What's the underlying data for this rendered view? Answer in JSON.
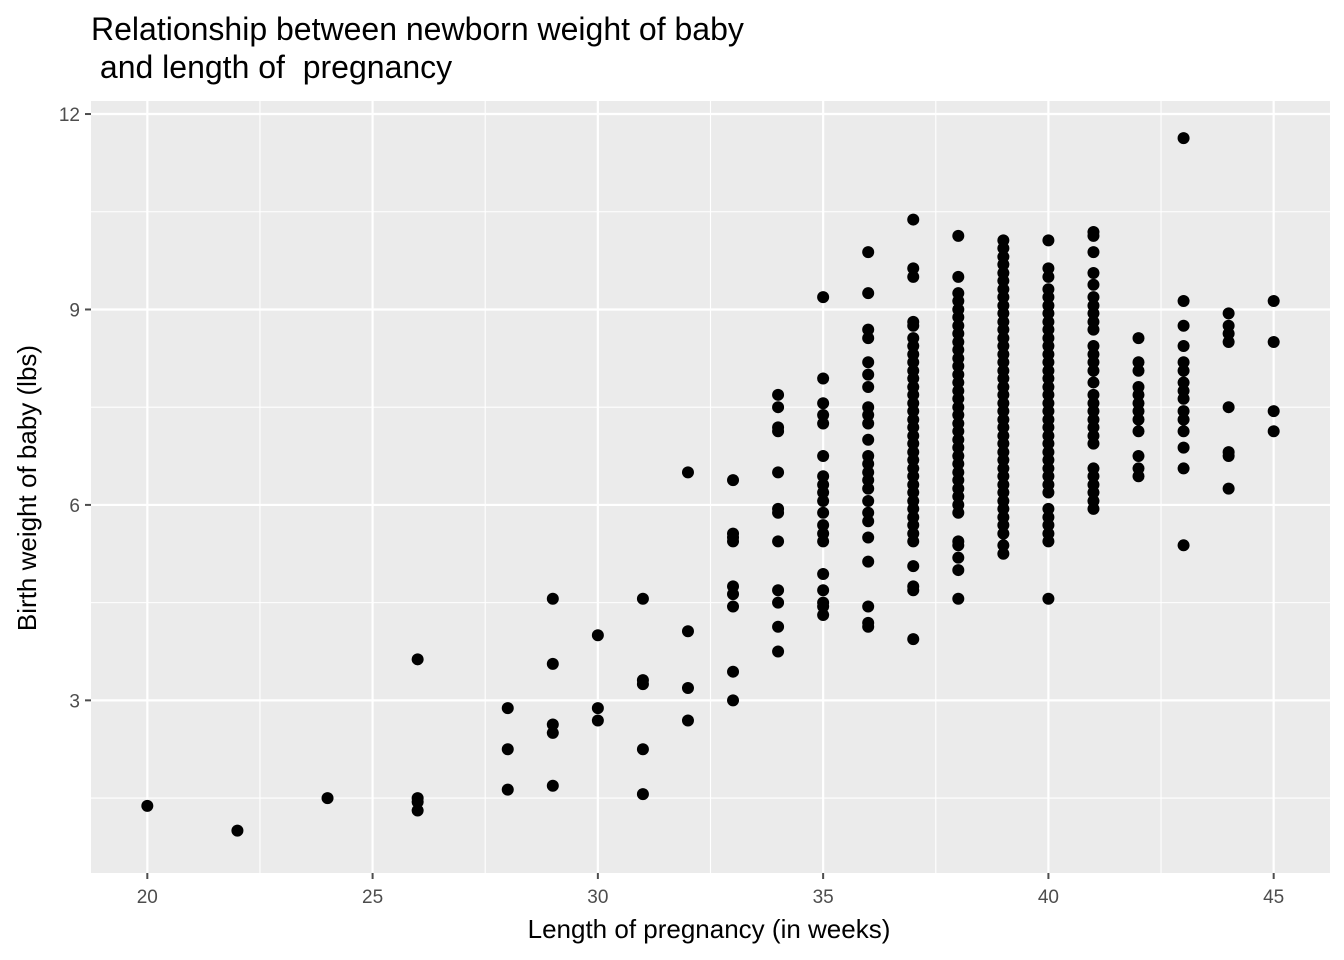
{
  "chart_data": {
    "type": "scatter",
    "title_lines": [
      "Relationship between newborn weight of baby",
      " and length of  pregnancy"
    ],
    "xlabel": "Length of pregnancy (in weeks)",
    "ylabel": "Birth weight of baby (lbs)",
    "xlim": [
      18.75,
      46.25
    ],
    "ylim": [
      0.35,
      12.2
    ],
    "x_ticks": [
      20,
      25,
      30,
      35,
      40,
      45
    ],
    "y_ticks": [
      3,
      6,
      9,
      12
    ],
    "grid": true,
    "colors": {
      "panel": "#ebebeb",
      "grid": "#ffffff",
      "point": "#000000",
      "tick": "#4d4d4d"
    },
    "points": [
      [
        20,
        1.38
      ],
      [
        22,
        1.0
      ],
      [
        24,
        1.5
      ],
      [
        26,
        3.63
      ],
      [
        26,
        1.5
      ],
      [
        26,
        1.44
      ],
      [
        26,
        1.31
      ],
      [
        28,
        2.88
      ],
      [
        28,
        2.25
      ],
      [
        28,
        1.63
      ],
      [
        29,
        4.56
      ],
      [
        29,
        3.56
      ],
      [
        29,
        2.63
      ],
      [
        29,
        2.5
      ],
      [
        29,
        1.69
      ],
      [
        30,
        4.0
      ],
      [
        30,
        2.88
      ],
      [
        30,
        2.69
      ],
      [
        31,
        4.56
      ],
      [
        31,
        3.31
      ],
      [
        31,
        3.25
      ],
      [
        31,
        2.25
      ],
      [
        31,
        1.56
      ],
      [
        32,
        6.5
      ],
      [
        32,
        4.06
      ],
      [
        32,
        3.19
      ],
      [
        32,
        2.69
      ],
      [
        33,
        6.38
      ],
      [
        33,
        5.56
      ],
      [
        33,
        5.5
      ],
      [
        33,
        5.44
      ],
      [
        33,
        4.75
      ],
      [
        33,
        4.63
      ],
      [
        33,
        4.44
      ],
      [
        33,
        3.44
      ],
      [
        33,
        3.0
      ],
      [
        34,
        7.69
      ],
      [
        34,
        7.5
      ],
      [
        34,
        7.19
      ],
      [
        34,
        7.13
      ],
      [
        34,
        6.5
      ],
      [
        34,
        5.94
      ],
      [
        34,
        5.88
      ],
      [
        34,
        5.44
      ],
      [
        34,
        4.69
      ],
      [
        34,
        4.5
      ],
      [
        34,
        4.13
      ],
      [
        34,
        3.75
      ],
      [
        35,
        9.19
      ],
      [
        35,
        7.94
      ],
      [
        35,
        7.56
      ],
      [
        35,
        7.38
      ],
      [
        35,
        7.25
      ],
      [
        35,
        6.75
      ],
      [
        35,
        6.44
      ],
      [
        35,
        6.31
      ],
      [
        35,
        6.19
      ],
      [
        35,
        6.06
      ],
      [
        35,
        5.88
      ],
      [
        35,
        5.69
      ],
      [
        35,
        5.56
      ],
      [
        35,
        5.44
      ],
      [
        35,
        4.94
      ],
      [
        35,
        4.69
      ],
      [
        35,
        4.5
      ],
      [
        35,
        4.44
      ],
      [
        35,
        4.31
      ],
      [
        36,
        9.88
      ],
      [
        36,
        9.25
      ],
      [
        36,
        8.69
      ],
      [
        36,
        8.56
      ],
      [
        36,
        8.19
      ],
      [
        36,
        8.0
      ],
      [
        36,
        7.81
      ],
      [
        36,
        7.5
      ],
      [
        36,
        7.38
      ],
      [
        36,
        7.25
      ],
      [
        36,
        7.0
      ],
      [
        36,
        6.75
      ],
      [
        36,
        6.63
      ],
      [
        36,
        6.5
      ],
      [
        36,
        6.38
      ],
      [
        36,
        6.25
      ],
      [
        36,
        6.06
      ],
      [
        36,
        5.88
      ],
      [
        36,
        5.75
      ],
      [
        36,
        5.5
      ],
      [
        36,
        5.13
      ],
      [
        36,
        4.44
      ],
      [
        36,
        4.19
      ],
      [
        36,
        4.13
      ],
      [
        37,
        10.38
      ],
      [
        37,
        9.63
      ],
      [
        37,
        9.5
      ],
      [
        37,
        8.81
      ],
      [
        37,
        8.75
      ],
      [
        37,
        8.56
      ],
      [
        37,
        8.44
      ],
      [
        37,
        8.31
      ],
      [
        37,
        8.19
      ],
      [
        37,
        8.06
      ],
      [
        37,
        7.94
      ],
      [
        37,
        7.81
      ],
      [
        37,
        7.69
      ],
      [
        37,
        7.56
      ],
      [
        37,
        7.44
      ],
      [
        37,
        7.31
      ],
      [
        37,
        7.19
      ],
      [
        37,
        7.06
      ],
      [
        37,
        6.94
      ],
      [
        37,
        6.81
      ],
      [
        37,
        6.69
      ],
      [
        37,
        6.56
      ],
      [
        37,
        6.44
      ],
      [
        37,
        6.31
      ],
      [
        37,
        6.19
      ],
      [
        37,
        6.06
      ],
      [
        37,
        5.94
      ],
      [
        37,
        5.81
      ],
      [
        37,
        5.69
      ],
      [
        37,
        5.56
      ],
      [
        37,
        5.44
      ],
      [
        37,
        5.06
      ],
      [
        37,
        4.75
      ],
      [
        37,
        4.69
      ],
      [
        37,
        3.94
      ],
      [
        38,
        10.13
      ],
      [
        38,
        9.5
      ],
      [
        38,
        9.25
      ],
      [
        38,
        9.13
      ],
      [
        38,
        9.0
      ],
      [
        38,
        8.88
      ],
      [
        38,
        8.75
      ],
      [
        38,
        8.63
      ],
      [
        38,
        8.5
      ],
      [
        38,
        8.38
      ],
      [
        38,
        8.25
      ],
      [
        38,
        8.13
      ],
      [
        38,
        8.0
      ],
      [
        38,
        7.88
      ],
      [
        38,
        7.75
      ],
      [
        38,
        7.63
      ],
      [
        38,
        7.5
      ],
      [
        38,
        7.38
      ],
      [
        38,
        7.25
      ],
      [
        38,
        7.13
      ],
      [
        38,
        7.0
      ],
      [
        38,
        6.88
      ],
      [
        38,
        6.75
      ],
      [
        38,
        6.63
      ],
      [
        38,
        6.5
      ],
      [
        38,
        6.38
      ],
      [
        38,
        6.25
      ],
      [
        38,
        6.13
      ],
      [
        38,
        6.0
      ],
      [
        38,
        5.88
      ],
      [
        38,
        5.44
      ],
      [
        38,
        5.38
      ],
      [
        38,
        5.19
      ],
      [
        38,
        5.0
      ],
      [
        38,
        4.56
      ],
      [
        39,
        10.06
      ],
      [
        39,
        9.94
      ],
      [
        39,
        9.81
      ],
      [
        39,
        9.69
      ],
      [
        39,
        9.56
      ],
      [
        39,
        9.44
      ],
      [
        39,
        9.31
      ],
      [
        39,
        9.19
      ],
      [
        39,
        9.06
      ],
      [
        39,
        8.94
      ],
      [
        39,
        8.81
      ],
      [
        39,
        8.69
      ],
      [
        39,
        8.56
      ],
      [
        39,
        8.44
      ],
      [
        39,
        8.31
      ],
      [
        39,
        8.19
      ],
      [
        39,
        8.06
      ],
      [
        39,
        7.94
      ],
      [
        39,
        7.81
      ],
      [
        39,
        7.69
      ],
      [
        39,
        7.56
      ],
      [
        39,
        7.44
      ],
      [
        39,
        7.31
      ],
      [
        39,
        7.19
      ],
      [
        39,
        7.06
      ],
      [
        39,
        6.94
      ],
      [
        39,
        6.81
      ],
      [
        39,
        6.69
      ],
      [
        39,
        6.56
      ],
      [
        39,
        6.44
      ],
      [
        39,
        6.31
      ],
      [
        39,
        6.19
      ],
      [
        39,
        6.06
      ],
      [
        39,
        5.94
      ],
      [
        39,
        5.81
      ],
      [
        39,
        5.69
      ],
      [
        39,
        5.56
      ],
      [
        39,
        5.38
      ],
      [
        39,
        5.25
      ],
      [
        40,
        10.06
      ],
      [
        40,
        9.63
      ],
      [
        40,
        9.5
      ],
      [
        40,
        9.31
      ],
      [
        40,
        9.19
      ],
      [
        40,
        9.06
      ],
      [
        40,
        8.94
      ],
      [
        40,
        8.81
      ],
      [
        40,
        8.69
      ],
      [
        40,
        8.56
      ],
      [
        40,
        8.44
      ],
      [
        40,
        8.31
      ],
      [
        40,
        8.19
      ],
      [
        40,
        8.06
      ],
      [
        40,
        7.94
      ],
      [
        40,
        7.81
      ],
      [
        40,
        7.69
      ],
      [
        40,
        7.56
      ],
      [
        40,
        7.44
      ],
      [
        40,
        7.31
      ],
      [
        40,
        7.19
      ],
      [
        40,
        7.06
      ],
      [
        40,
        6.94
      ],
      [
        40,
        6.81
      ],
      [
        40,
        6.69
      ],
      [
        40,
        6.56
      ],
      [
        40,
        6.44
      ],
      [
        40,
        6.31
      ],
      [
        40,
        6.19
      ],
      [
        40,
        5.94
      ],
      [
        40,
        5.81
      ],
      [
        40,
        5.69
      ],
      [
        40,
        5.56
      ],
      [
        40,
        5.44
      ],
      [
        40,
        4.56
      ],
      [
        41,
        10.19
      ],
      [
        41,
        10.13
      ],
      [
        41,
        9.88
      ],
      [
        41,
        9.56
      ],
      [
        41,
        9.38
      ],
      [
        41,
        9.19
      ],
      [
        41,
        9.06
      ],
      [
        41,
        8.94
      ],
      [
        41,
        8.81
      ],
      [
        41,
        8.69
      ],
      [
        41,
        8.44
      ],
      [
        41,
        8.31
      ],
      [
        41,
        8.19
      ],
      [
        41,
        8.06
      ],
      [
        41,
        7.88
      ],
      [
        41,
        7.69
      ],
      [
        41,
        7.56
      ],
      [
        41,
        7.44
      ],
      [
        41,
        7.31
      ],
      [
        41,
        7.19
      ],
      [
        41,
        7.06
      ],
      [
        41,
        6.94
      ],
      [
        41,
        6.56
      ],
      [
        41,
        6.44
      ],
      [
        41,
        6.31
      ],
      [
        41,
        6.19
      ],
      [
        41,
        6.06
      ],
      [
        41,
        5.94
      ],
      [
        42,
        8.56
      ],
      [
        42,
        8.19
      ],
      [
        42,
        8.06
      ],
      [
        42,
        7.81
      ],
      [
        42,
        7.69
      ],
      [
        42,
        7.56
      ],
      [
        42,
        7.44
      ],
      [
        42,
        7.31
      ],
      [
        42,
        7.13
      ],
      [
        42,
        6.75
      ],
      [
        42,
        6.56
      ],
      [
        42,
        6.44
      ],
      [
        43,
        11.63
      ],
      [
        43,
        9.13
      ],
      [
        43,
        8.75
      ],
      [
        43,
        8.44
      ],
      [
        43,
        8.19
      ],
      [
        43,
        8.06
      ],
      [
        43,
        7.88
      ],
      [
        43,
        7.75
      ],
      [
        43,
        7.63
      ],
      [
        43,
        7.44
      ],
      [
        43,
        7.31
      ],
      [
        43,
        7.13
      ],
      [
        43,
        6.88
      ],
      [
        43,
        6.56
      ],
      [
        43,
        5.38
      ],
      [
        44,
        8.94
      ],
      [
        44,
        8.75
      ],
      [
        44,
        8.63
      ],
      [
        44,
        8.5
      ],
      [
        44,
        7.5
      ],
      [
        44,
        6.81
      ],
      [
        44,
        6.75
      ],
      [
        44,
        6.25
      ],
      [
        45,
        9.13
      ],
      [
        45,
        8.5
      ],
      [
        45,
        7.44
      ],
      [
        45,
        7.13
      ]
    ]
  }
}
